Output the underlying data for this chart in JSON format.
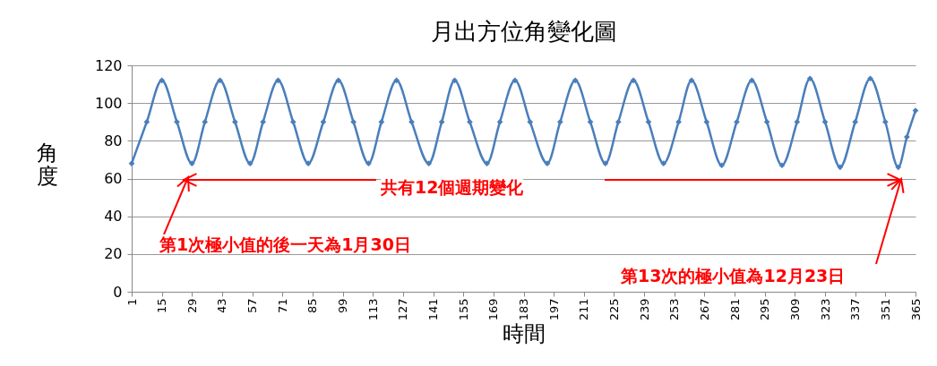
{
  "chart_data": {
    "type": "line",
    "title": "月出方位角變化圖",
    "xlabel": "時間",
    "ylabel": "角度",
    "x": [
      1,
      8,
      15,
      22,
      29,
      35,
      42,
      49,
      56,
      62,
      69,
      76,
      83,
      90,
      97,
      104,
      111,
      117,
      124,
      131,
      139,
      145,
      151,
      158,
      166,
      172,
      179,
      186,
      194,
      200,
      207,
      214,
      221,
      227,
      234,
      241,
      248,
      255,
      261,
      268,
      275,
      282,
      289,
      296,
      303,
      310,
      316,
      323,
      330,
      337,
      344,
      351,
      357,
      361,
      365
    ],
    "series": [
      {
        "color": "#4a7ebb",
        "values": [
          68,
          90,
          112,
          90,
          68,
          90,
          112,
          90,
          68,
          90,
          112,
          90,
          68,
          90,
          112,
          90,
          68,
          90,
          112,
          90,
          68,
          90,
          112,
          90,
          68,
          90,
          112,
          90,
          68,
          90,
          112,
          90,
          68,
          90,
          112,
          90,
          68,
          90,
          112,
          90,
          67,
          90,
          112,
          90,
          67,
          90,
          113,
          90,
          66,
          90,
          113,
          90,
          66,
          82,
          96
        ]
      }
    ],
    "xlim": [
      1,
      365
    ],
    "xticks": [
      1,
      15,
      29,
      43,
      57,
      71,
      85,
      99,
      113,
      127,
      141,
      155,
      169,
      183,
      197,
      211,
      225,
      239,
      253,
      267,
      281,
      295,
      309,
      323,
      337,
      351,
      365
    ],
    "ylim": [
      0,
      120
    ],
    "yticks": [
      0,
      20,
      40,
      60,
      80,
      100,
      120
    ],
    "grid": "y",
    "marker": "diamond",
    "legend": false,
    "annotations": [
      "共有12個週期變化",
      "第1次極小值的後一天為1月30日",
      "第13次的極小值為12月23日"
    ]
  }
}
